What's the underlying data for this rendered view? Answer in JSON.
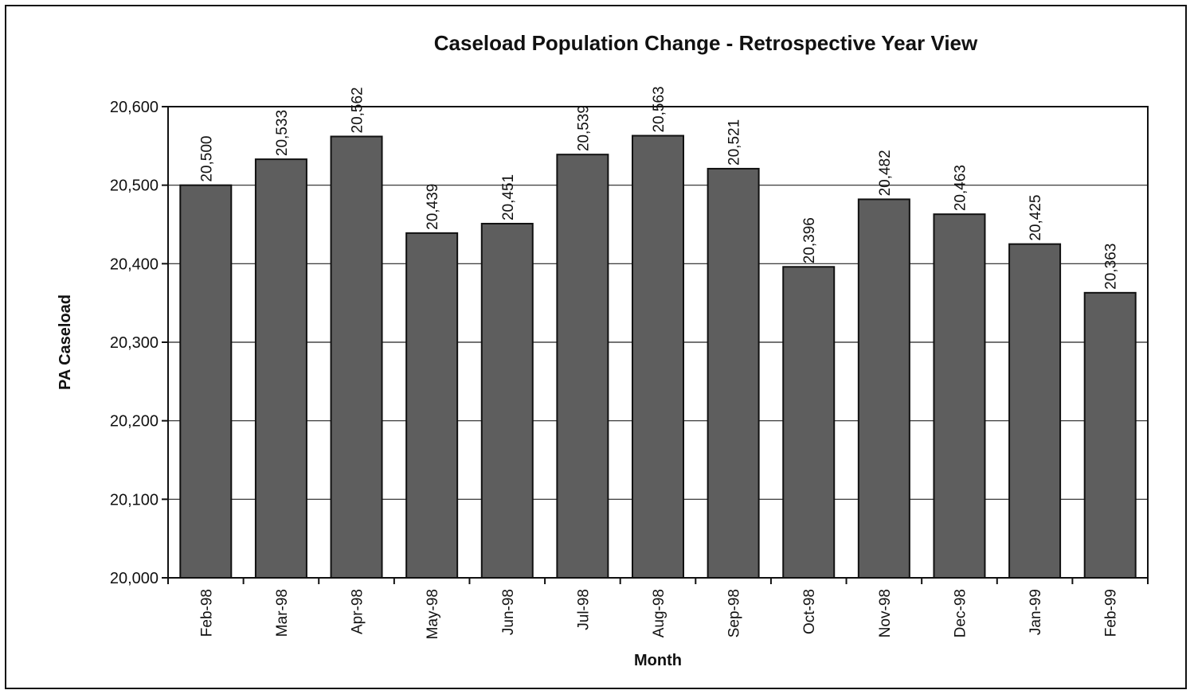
{
  "chart_data": {
    "type": "bar",
    "title": "Caseload Population Change - Retrospective Year View",
    "xlabel": "Month",
    "ylabel": "PA Caseload",
    "categories": [
      "Feb-98",
      "Mar-98",
      "Apr-98",
      "May-98",
      "Jun-98",
      "Jul-98",
      "Aug-98",
      "Sep-98",
      "Oct-98",
      "Nov-98",
      "Dec-98",
      "Jan-99",
      "Feb-99"
    ],
    "values": [
      20500,
      20533,
      20562,
      20439,
      20451,
      20539,
      20563,
      20521,
      20396,
      20482,
      20463,
      20425,
      20363
    ],
    "data_labels": [
      "20,500",
      "20,533",
      "20,562",
      "20,439",
      "20,451",
      "20,539",
      "20,563",
      "20,521",
      "20,396",
      "20,482",
      "20,463",
      "20,425",
      "20,363"
    ],
    "ylim": [
      20000,
      20600
    ],
    "yticks": [
      20000,
      20100,
      20200,
      20300,
      20400,
      20500,
      20600
    ],
    "ytick_labels": [
      "20,000",
      "20,100",
      "20,200",
      "20,300",
      "20,400",
      "20,500",
      "20,600"
    ],
    "grid": true,
    "legend": "none",
    "bar_color": "#5e5e5e"
  }
}
